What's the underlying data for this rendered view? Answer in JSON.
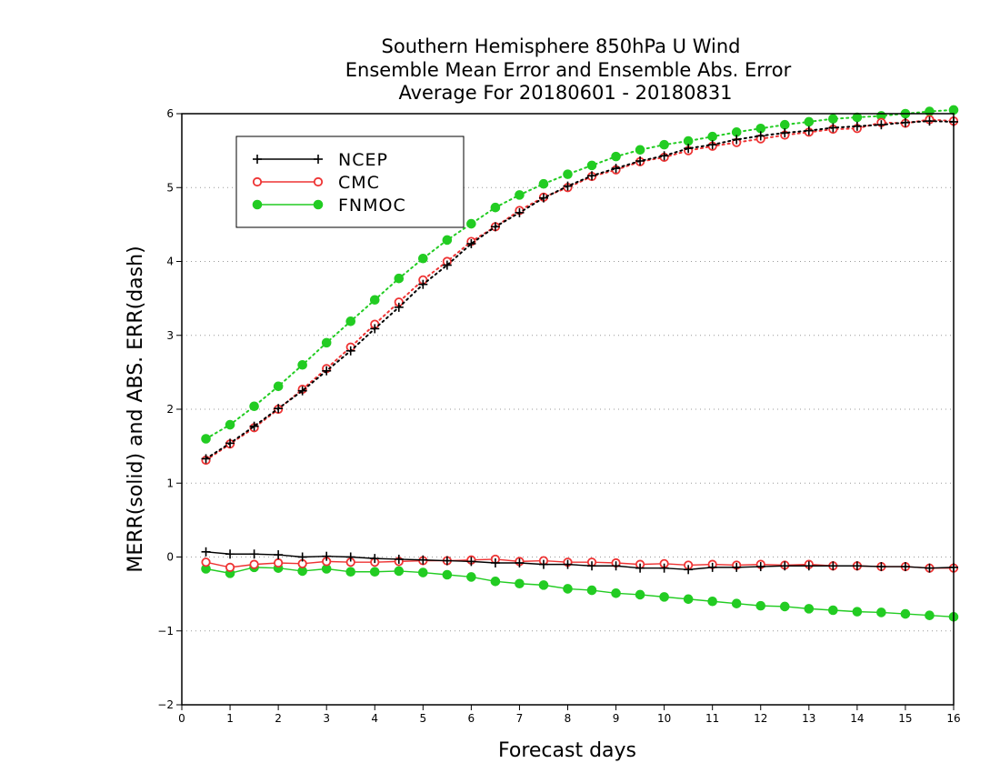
{
  "chart_data": {
    "type": "line",
    "title": [
      "Southern Hemisphere 850hPa U Wind",
      "Ensemble Mean Error and Ensemble Abs. Error",
      "Average For 20180601 - 20180831"
    ],
    "xlabel": "Forecast days",
    "ylabel": "MERR(solid) and ABS. ERR(dash)",
    "xlim": [
      0,
      16
    ],
    "ylim": [
      -2,
      6
    ],
    "x_ticks": [
      "0",
      "1",
      "2",
      "3",
      "4",
      "5",
      "6",
      "7",
      "8",
      "9",
      "10",
      "11",
      "12",
      "13",
      "14",
      "15",
      "16"
    ],
    "y_ticks": [
      "−2",
      "−1",
      "0",
      "1",
      "2",
      "3",
      "4",
      "5",
      "6"
    ],
    "grid": "horizontal dotted",
    "legend_position": "top-left",
    "x": [
      0.5,
      1,
      1.5,
      2,
      2.5,
      3,
      3.5,
      4,
      4.5,
      5,
      5.5,
      6,
      6.5,
      7,
      7.5,
      8,
      8.5,
      9,
      9.5,
      10,
      10.5,
      11,
      11.5,
      12,
      12.5,
      13,
      13.5,
      14,
      14.5,
      15,
      15.5,
      16
    ],
    "series": [
      {
        "name": "NCEP",
        "color": "#000000",
        "marker": "plus",
        "merr": [
          0.07,
          0.04,
          0.04,
          0.03,
          0.0,
          0.01,
          0.0,
          -0.02,
          -0.03,
          -0.04,
          -0.05,
          -0.06,
          -0.08,
          -0.08,
          -0.1,
          -0.1,
          -0.12,
          -0.12,
          -0.15,
          -0.15,
          -0.17,
          -0.14,
          -0.14,
          -0.13,
          -0.12,
          -0.12,
          -0.12,
          -0.12,
          -0.13,
          -0.13,
          -0.15,
          -0.14
        ],
        "abs_err": [
          1.33,
          1.54,
          1.77,
          2.01,
          2.25,
          2.52,
          2.79,
          3.09,
          3.38,
          3.69,
          3.95,
          4.24,
          4.47,
          4.66,
          4.86,
          5.02,
          5.16,
          5.26,
          5.36,
          5.43,
          5.53,
          5.58,
          5.65,
          5.7,
          5.74,
          5.77,
          5.81,
          5.83,
          5.85,
          5.88,
          5.9,
          5.89
        ]
      },
      {
        "name": "CMC",
        "color": "#ee3333",
        "marker": "open-circle",
        "merr": [
          -0.07,
          -0.14,
          -0.1,
          -0.08,
          -0.09,
          -0.06,
          -0.07,
          -0.07,
          -0.06,
          -0.05,
          -0.05,
          -0.04,
          -0.03,
          -0.06,
          -0.05,
          -0.07,
          -0.07,
          -0.08,
          -0.1,
          -0.09,
          -0.11,
          -0.1,
          -0.11,
          -0.1,
          -0.11,
          -0.1,
          -0.12,
          -0.12,
          -0.13,
          -0.13,
          -0.15,
          -0.15
        ],
        "abs_err": [
          1.31,
          1.53,
          1.75,
          2.0,
          2.27,
          2.55,
          2.84,
          3.15,
          3.45,
          3.75,
          4.0,
          4.27,
          4.47,
          4.69,
          4.87,
          5.0,
          5.15,
          5.24,
          5.35,
          5.41,
          5.5,
          5.56,
          5.61,
          5.66,
          5.71,
          5.75,
          5.79,
          5.8,
          5.88,
          5.87,
          5.92,
          5.9
        ]
      },
      {
        "name": "FNMOC",
        "color": "#22cc22",
        "marker": "filled-circle",
        "merr": [
          -0.16,
          -0.22,
          -0.14,
          -0.15,
          -0.19,
          -0.16,
          -0.2,
          -0.2,
          -0.19,
          -0.21,
          -0.24,
          -0.27,
          -0.33,
          -0.36,
          -0.38,
          -0.43,
          -0.45,
          -0.49,
          -0.51,
          -0.54,
          -0.57,
          -0.6,
          -0.63,
          -0.66,
          -0.67,
          -0.7,
          -0.72,
          -0.74,
          -0.75,
          -0.77,
          -0.79,
          -0.81
        ],
        "abs_err": [
          1.6,
          1.79,
          2.04,
          2.31,
          2.6,
          2.9,
          3.19,
          3.48,
          3.77,
          4.04,
          4.29,
          4.51,
          4.73,
          4.9,
          5.05,
          5.18,
          5.3,
          5.42,
          5.51,
          5.58,
          5.63,
          5.69,
          5.75,
          5.8,
          5.85,
          5.89,
          5.93,
          5.95,
          5.97,
          6.0,
          6.03,
          6.05
        ]
      }
    ]
  }
}
